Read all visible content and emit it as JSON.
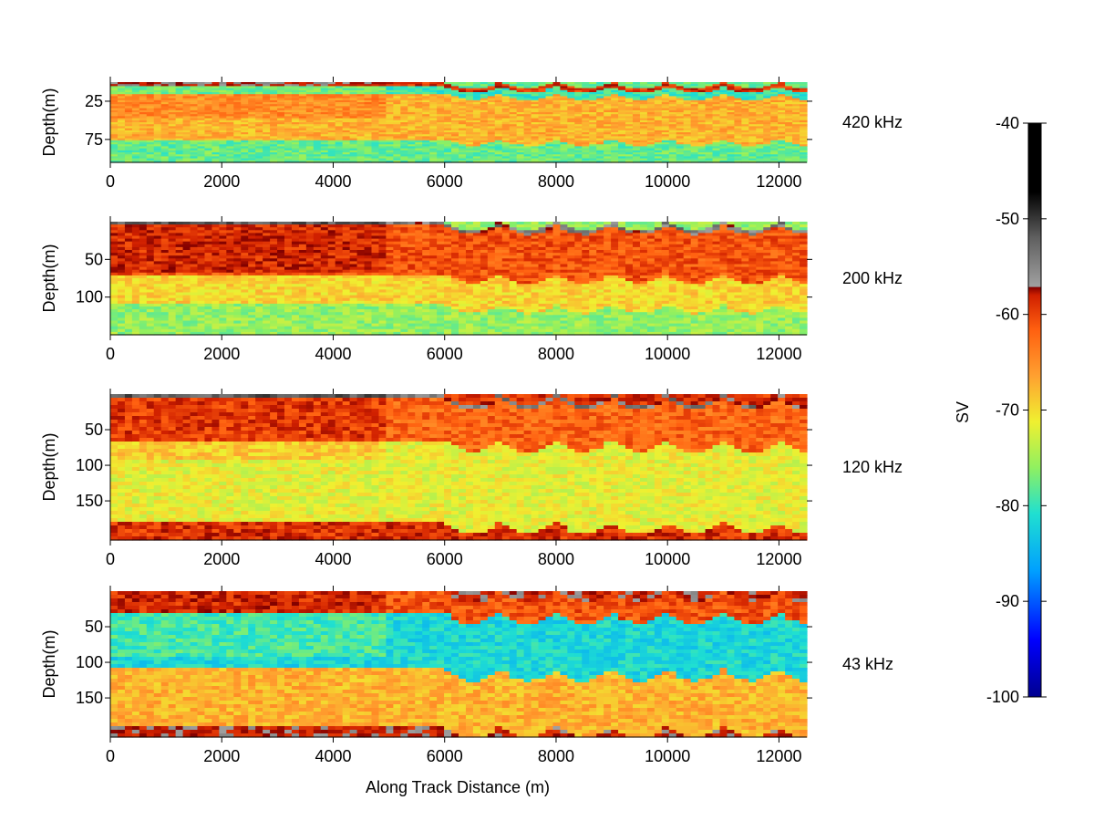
{
  "chart_data": {
    "type": "heatmap",
    "xlabel": "Along Track Distance (m)",
    "xlim": [
      0,
      12500
    ],
    "xticks": [
      0,
      2000,
      4000,
      6000,
      8000,
      10000,
      12000
    ],
    "colorbar": {
      "label": "SV",
      "range": [
        -100,
        -40
      ],
      "ticks": [
        -40,
        -50,
        -60,
        -70,
        -80,
        -90,
        -100
      ],
      "colormap": "jet-with-grey-black-above-57",
      "colors": [
        "#00008f",
        "#0000ff",
        "#00a0ff",
        "#20e0d0",
        "#90f060",
        "#f0f030",
        "#ffa030",
        "#ff6010",
        "#d02000",
        "#800000",
        "#a0a0a0",
        "#000000"
      ]
    },
    "panels": [
      {
        "name": "420 kHz",
        "ylabel": "Depth(m)",
        "ylim": [
          0,
          105
        ],
        "yticks": [
          25,
          75
        ],
        "layers": [
          {
            "feature": "surface",
            "depth": [
              0,
              6
            ],
            "sv": -60
          },
          {
            "feature": "near-surface low",
            "depth": [
              6,
              15
            ],
            "sv": -80
          },
          {
            "feature": "scattering layer",
            "depth": [
              15,
              75
            ],
            "sv": -68
          },
          {
            "feature": "deep low",
            "depth": [
              75,
              105
            ],
            "sv": -78
          }
        ],
        "wave_start": 6000,
        "wave_spacing": 1000
      },
      {
        "name": "200 kHz",
        "ylabel": "Depth(m)",
        "ylim": [
          0,
          150
        ],
        "yticks": [
          50,
          100
        ],
        "layers": [
          {
            "feature": "surface",
            "depth": [
              0,
              5
            ],
            "sv": -55
          },
          {
            "feature": "strong layer",
            "depth": [
              5,
              70
            ],
            "sv": -62
          },
          {
            "feature": "mid layer",
            "depth": [
              70,
              110
            ],
            "sv": -70
          },
          {
            "feature": "deep low",
            "depth": [
              110,
              150
            ],
            "sv": -76
          }
        ],
        "wave_start": 6000,
        "wave_spacing": 1000
      },
      {
        "name": "120 kHz",
        "ylabel": "Depth(m)",
        "ylim": [
          0,
          205
        ],
        "yticks": [
          50,
          100,
          150
        ],
        "layers": [
          {
            "feature": "surface",
            "depth": [
              0,
              5
            ],
            "sv": -55
          },
          {
            "feature": "strong layer",
            "depth": [
              5,
              65
            ],
            "sv": -63
          },
          {
            "feature": "mid layer",
            "depth": [
              65,
              180
            ],
            "sv": -72
          },
          {
            "feature": "bottom",
            "depth": [
              180,
              205
            ],
            "sv": -60
          }
        ],
        "wave_start": 6000,
        "wave_spacing": 1000
      },
      {
        "name": "43 kHz",
        "ylabel": "Depth(m)",
        "ylim": [
          0,
          205
        ],
        "yticks": [
          50,
          100,
          150
        ],
        "layers": [
          {
            "feature": "surface",
            "depth": [
              0,
              30
            ],
            "sv": -62
          },
          {
            "feature": "low band",
            "depth": [
              30,
              110
            ],
            "sv": -82
          },
          {
            "feature": "deep layer",
            "depth": [
              110,
              190
            ],
            "sv": -68
          },
          {
            "feature": "bottom",
            "depth": [
              190,
              205
            ],
            "sv": -58
          }
        ],
        "wave_start": 6000,
        "wave_spacing": 1000
      }
    ]
  }
}
